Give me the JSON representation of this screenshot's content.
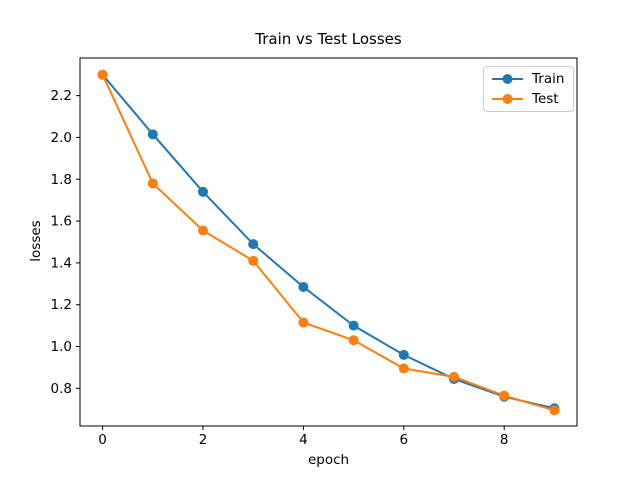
{
  "figure": {
    "background": "#ffffff",
    "text_color": "#000000",
    "spine_color": "#000000"
  },
  "chart_data": {
    "type": "line",
    "title": "Train vs Test Losses",
    "xlabel": "epoch",
    "ylabel": "losses",
    "grid": false,
    "x": [
      0,
      1,
      2,
      3,
      4,
      5,
      6,
      7,
      8,
      9
    ],
    "series": [
      {
        "name": "Train",
        "color": "#1f77b4",
        "marker": "circle",
        "values": [
          2.3,
          2.015,
          1.74,
          1.49,
          1.285,
          1.1,
          0.96,
          0.845,
          0.76,
          0.705
        ]
      },
      {
        "name": "Test",
        "color": "#ff7f0e",
        "marker": "circle",
        "values": [
          2.3,
          1.78,
          1.555,
          1.41,
          1.115,
          1.03,
          0.895,
          0.855,
          0.765,
          0.695
        ]
      }
    ],
    "xlim": [
      -0.45,
      9.45
    ],
    "ylim": [
      0.62,
      2.38
    ],
    "x_ticks": [
      0,
      2,
      4,
      6,
      8
    ],
    "x_tick_labels": [
      "0",
      "2",
      "4",
      "6",
      "8"
    ],
    "y_ticks": [
      0.8,
      1.0,
      1.2,
      1.4,
      1.6,
      1.8,
      2.0,
      2.2
    ],
    "y_tick_labels": [
      "0.8",
      "1.0",
      "1.2",
      "1.4",
      "1.6",
      "1.8",
      "2.0",
      "2.2"
    ],
    "legend": {
      "position": "upper right",
      "labels": [
        "Train",
        "Test"
      ]
    }
  }
}
